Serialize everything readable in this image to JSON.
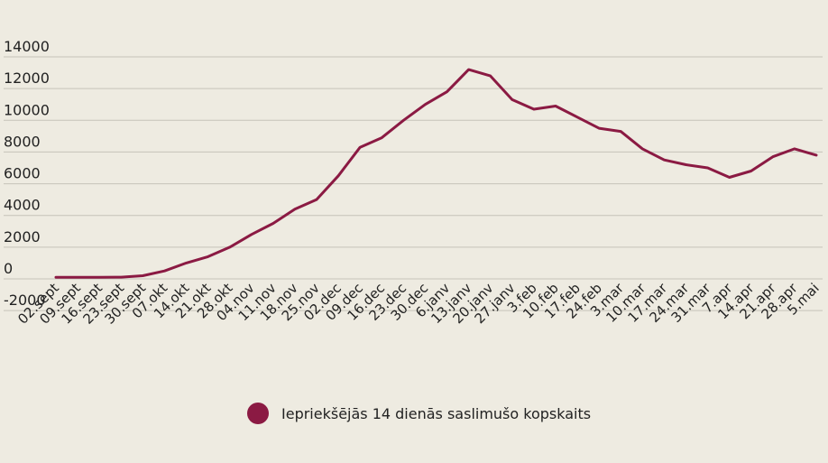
{
  "chart_data": {
    "type": "line",
    "title": "",
    "xlabel": "",
    "ylabel": "",
    "ylim": [
      -2000,
      14000
    ],
    "yticks": [
      -2000,
      0,
      2000,
      4000,
      6000,
      8000,
      10000,
      12000,
      14000
    ],
    "grid": true,
    "legend_position": "bottom-center",
    "x_tick_labels": [
      "02.sept",
      "09.sept",
      "16.sept",
      "23.sept",
      "30.sept",
      "07.okt",
      "14.okt",
      "21.okt",
      "28.okt",
      "04.nov",
      "11.nov",
      "18.nov",
      "25.nov",
      "02.dec",
      "09.dec",
      "16.dec",
      "23.dec",
      "30.dec",
      "6.janv",
      "13.janv",
      "20.janv",
      "27.janv",
      "3.feb",
      "10.feb",
      "17.feb",
      "24.feb",
      "3.mar",
      "10.mar",
      "17.mar",
      "24.mar",
      "31.mar",
      "7.apr",
      "14.apr",
      "21.apr",
      "28.apr",
      "5.mai"
    ],
    "series": [
      {
        "name": "Iepriekšējās 14 dienās saslimušo kopskaits",
        "color": "#8b1a43",
        "points": [
          [
            "02.sept",
            100
          ],
          [
            "09.sept",
            100
          ],
          [
            "16.sept",
            100
          ],
          [
            "23.sept",
            110
          ],
          [
            "30.sept",
            200
          ],
          [
            "07.okt",
            500
          ],
          [
            "14.okt",
            1000
          ],
          [
            "21.okt",
            1400
          ],
          [
            "28.okt",
            2000
          ],
          [
            "04.nov",
            2800
          ],
          [
            "11.nov",
            3500
          ],
          [
            "18.nov",
            4400
          ],
          [
            "25.nov",
            5000
          ],
          [
            "02.dec",
            6500
          ],
          [
            "09.dec",
            8300
          ],
          [
            "16.dec",
            8900
          ],
          [
            "23.dec",
            10000
          ],
          [
            "30.dec",
            11000
          ],
          [
            "6.janv",
            11800
          ],
          [
            "13.janv",
            13200
          ],
          [
            "20.janv",
            12800
          ],
          [
            "27.janv",
            11300
          ],
          [
            "3.feb",
            10700
          ],
          [
            "10.feb",
            10900
          ],
          [
            "17.feb",
            10200
          ],
          [
            "24.feb",
            9500
          ],
          [
            "3.mar",
            9300
          ],
          [
            "10.mar",
            8200
          ],
          [
            "17.mar",
            7500
          ],
          [
            "24.mar",
            7200
          ],
          [
            "31.mar",
            7000
          ],
          [
            "7.apr",
            6400
          ],
          [
            "14.apr",
            6800
          ],
          [
            "21.apr",
            7700
          ],
          [
            "28.apr",
            8200
          ],
          [
            "5.mai",
            7800
          ]
        ]
      }
    ]
  }
}
